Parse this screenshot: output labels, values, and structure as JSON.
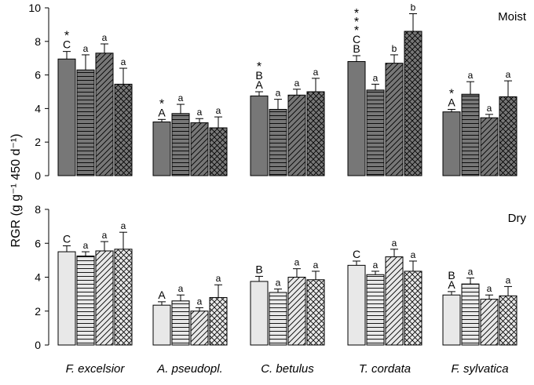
{
  "chart_data": {
    "type": "bar",
    "ylabel": "RGR (g g⁻¹ 450 d⁻¹)",
    "ylim": [
      0,
      10
    ],
    "yticks": [
      "0",
      "2",
      "4",
      "6",
      "8",
      "10"
    ],
    "categories": [
      "F. excelsior",
      "A. pseudopl.",
      "C. betulus",
      "T. cordata",
      "F. sylvatica"
    ],
    "series_patterns": [
      "solid",
      "horizontal",
      "diagonal",
      "crosshatch"
    ],
    "panels": [
      {
        "title": "Moist",
        "ylim": [
          0,
          10
        ],
        "yticks": [
          "0",
          "2",
          "4",
          "6",
          "8",
          "10"
        ],
        "fill_color": "#777777",
        "groups": [
          {
            "category": "F. excelsior",
            "star": "*",
            "bars": [
              {
                "value": 6.95,
                "err": 0.45,
                "letters": [
                  "C"
                ]
              },
              {
                "value": 6.3,
                "err": 0.9,
                "letters": [
                  "a"
                ]
              },
              {
                "value": 7.3,
                "err": 0.55,
                "letters": [
                  "a"
                ]
              },
              {
                "value": 5.45,
                "err": 0.95,
                "letters": [
                  "a"
                ]
              }
            ]
          },
          {
            "category": "A. pseudopl.",
            "star": "*",
            "bars": [
              {
                "value": 3.2,
                "err": 0.15,
                "letters": [
                  "A"
                ]
              },
              {
                "value": 3.7,
                "err": 0.55,
                "letters": [
                  "a"
                ]
              },
              {
                "value": 3.15,
                "err": 0.25,
                "letters": [
                  "a"
                ]
              },
              {
                "value": 2.85,
                "err": 0.65,
                "letters": [
                  "a"
                ]
              }
            ]
          },
          {
            "category": "C. betulus",
            "star": "*",
            "bars": [
              {
                "value": 4.75,
                "err": 0.25,
                "letters": [
                  "B",
                  "A"
                ]
              },
              {
                "value": 3.95,
                "err": 0.6,
                "letters": [
                  "a"
                ]
              },
              {
                "value": 4.8,
                "err": 0.35,
                "letters": [
                  "a"
                ]
              },
              {
                "value": 5.0,
                "err": 0.8,
                "letters": [
                  "a"
                ]
              }
            ]
          },
          {
            "category": "T. cordata",
            "star": "* * *",
            "bars": [
              {
                "value": 6.8,
                "err": 0.35,
                "letters": [
                  "C",
                  "B"
                ]
              },
              {
                "value": 5.1,
                "err": 0.35,
                "letters": [
                  "a"
                ]
              },
              {
                "value": 6.7,
                "err": 0.5,
                "letters": [
                  "b"
                ]
              },
              {
                "value": 8.6,
                "err": 1.05,
                "letters": [
                  "b"
                ]
              }
            ]
          },
          {
            "category": "F. sylvatica",
            "star": "*",
            "bars": [
              {
                "value": 3.8,
                "err": 0.15,
                "letters": [
                  "A"
                ]
              },
              {
                "value": 4.85,
                "err": 0.75,
                "letters": [
                  "a"
                ]
              },
              {
                "value": 3.45,
                "err": 0.2,
                "letters": [
                  "a"
                ]
              },
              {
                "value": 4.7,
                "err": 0.95,
                "letters": [
                  "a"
                ]
              }
            ]
          }
        ]
      },
      {
        "title": "Dry",
        "ylim": [
          0,
          8
        ],
        "yticks": [
          "0",
          "2",
          "4",
          "6",
          "8"
        ],
        "fill_color": "#e8e8e8",
        "groups": [
          {
            "category": "F. excelsior",
            "star": "",
            "bars": [
              {
                "value": 5.5,
                "err": 0.35,
                "letters": [
                  "C"
                ]
              },
              {
                "value": 5.25,
                "err": 0.25,
                "letters": [
                  "a"
                ]
              },
              {
                "value": 5.55,
                "err": 0.55,
                "letters": [
                  "a"
                ]
              },
              {
                "value": 5.65,
                "err": 1.0,
                "letters": [
                  "a"
                ]
              }
            ]
          },
          {
            "category": "A. pseudopl.",
            "star": "",
            "bars": [
              {
                "value": 2.35,
                "err": 0.2,
                "letters": [
                  "A"
                ]
              },
              {
                "value": 2.6,
                "err": 0.35,
                "letters": [
                  "a"
                ]
              },
              {
                "value": 2.0,
                "err": 0.2,
                "letters": [
                  "a"
                ]
              },
              {
                "value": 2.8,
                "err": 0.75,
                "letters": [
                  "a"
                ]
              }
            ]
          },
          {
            "category": "C. betulus",
            "star": "",
            "bars": [
              {
                "value": 3.75,
                "err": 0.3,
                "letters": [
                  "B"
                ]
              },
              {
                "value": 3.1,
                "err": 0.2,
                "letters": [
                  "a"
                ]
              },
              {
                "value": 4.0,
                "err": 0.5,
                "letters": [
                  "a"
                ]
              },
              {
                "value": 3.85,
                "err": 0.5,
                "letters": [
                  "a"
                ]
              }
            ]
          },
          {
            "category": "T. cordata",
            "star": "",
            "bars": [
              {
                "value": 4.7,
                "err": 0.25,
                "letters": [
                  "C"
                ]
              },
              {
                "value": 4.15,
                "err": 0.2,
                "letters": [
                  "a"
                ]
              },
              {
                "value": 5.2,
                "err": 0.45,
                "letters": [
                  "a"
                ]
              },
              {
                "value": 4.35,
                "err": 0.6,
                "letters": [
                  "a"
                ]
              }
            ]
          },
          {
            "category": "F. sylvatica",
            "star": "",
            "bars": [
              {
                "value": 2.95,
                "err": 0.2,
                "letters": [
                  "B",
                  "A"
                ]
              },
              {
                "value": 3.6,
                "err": 0.35,
                "letters": [
                  "a"
                ]
              },
              {
                "value": 2.7,
                "err": 0.25,
                "letters": [
                  "a"
                ]
              },
              {
                "value": 2.9,
                "err": 0.55,
                "letters": [
                  "a"
                ]
              }
            ]
          }
        ]
      }
    ]
  }
}
